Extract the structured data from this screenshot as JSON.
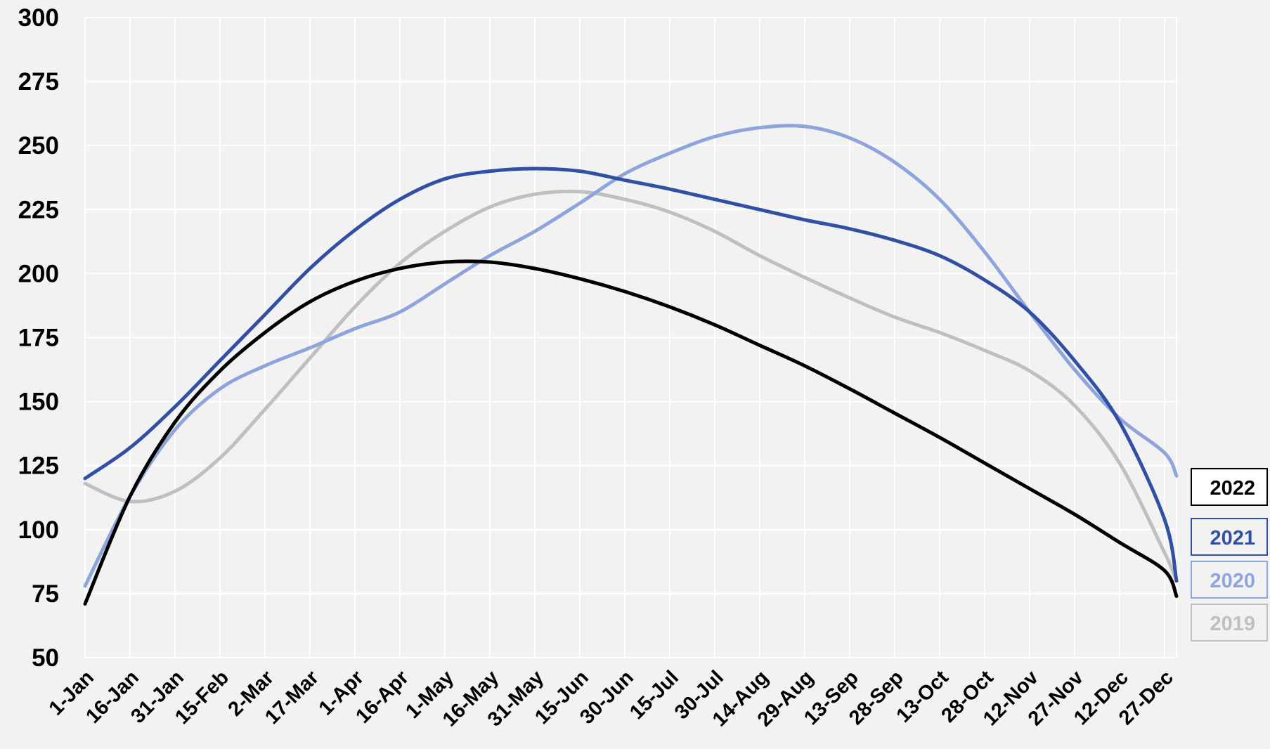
{
  "chart_data": {
    "type": "line",
    "x": [
      0,
      15,
      30,
      45,
      60,
      75,
      90,
      105,
      120,
      135,
      150,
      165,
      180,
      195,
      210,
      225,
      240,
      255,
      270,
      285,
      300,
      315,
      330,
      345,
      360,
      364
    ],
    "xlim": [
      0,
      364
    ],
    "xticks": [
      {
        "value": 0,
        "label": "1-Jan"
      },
      {
        "value": 15,
        "label": "16-Jan"
      },
      {
        "value": 30,
        "label": "31-Jan"
      },
      {
        "value": 45,
        "label": "15-Feb"
      },
      {
        "value": 60,
        "label": "2-Mar"
      },
      {
        "value": 75,
        "label": "17-Mar"
      },
      {
        "value": 90,
        "label": "1-Apr"
      },
      {
        "value": 105,
        "label": "16-Apr"
      },
      {
        "value": 120,
        "label": "1-May"
      },
      {
        "value": 135,
        "label": "16-May"
      },
      {
        "value": 150,
        "label": "31-May"
      },
      {
        "value": 165,
        "label": "15-Jun"
      },
      {
        "value": 180,
        "label": "30-Jun"
      },
      {
        "value": 195,
        "label": "15-Jul"
      },
      {
        "value": 210,
        "label": "30-Jul"
      },
      {
        "value": 225,
        "label": "14-Aug"
      },
      {
        "value": 240,
        "label": "29-Aug"
      },
      {
        "value": 255,
        "label": "13-Sep"
      },
      {
        "value": 270,
        "label": "28-Sep"
      },
      {
        "value": 285,
        "label": "13-Oct"
      },
      {
        "value": 300,
        "label": "28-Oct"
      },
      {
        "value": 315,
        "label": "12-Nov"
      },
      {
        "value": 330,
        "label": "27-Nov"
      },
      {
        "value": 345,
        "label": "12-Dec"
      },
      {
        "value": 360,
        "label": "27-Dec"
      }
    ],
    "ylim": [
      50,
      300
    ],
    "yticks": [
      50,
      75,
      100,
      125,
      150,
      175,
      200,
      225,
      250,
      275,
      300
    ],
    "grid": true,
    "legend": "right",
    "series": [
      {
        "name": "2022",
        "color": "#000000",
        "values": [
          71,
          113,
          142,
          162,
          177,
          189,
          197,
          202,
          204.5,
          204.5,
          202,
          198,
          193,
          187,
          180,
          172,
          164,
          155,
          145.5,
          136,
          126,
          116,
          106,
          95,
          84,
          74
        ]
      },
      {
        "name": "2021",
        "color": "#3150a3",
        "values": [
          120,
          132,
          148,
          166,
          184,
          202,
          217,
          229,
          237,
          240,
          241,
          240,
          236.5,
          233,
          229,
          225,
          221,
          217.5,
          213,
          207,
          197.5,
          185,
          166,
          142,
          104,
          80
        ]
      },
      {
        "name": "2020",
        "color": "#8ea4dc",
        "values": [
          78,
          113,
          139,
          155,
          164,
          171,
          178.5,
          185,
          196,
          207,
          216.5,
          227.5,
          239,
          247,
          253.5,
          257,
          257.5,
          253,
          243.5,
          229,
          208.5,
          185,
          162.5,
          143.5,
          130,
          121
        ]
      },
      {
        "name": "2019",
        "color": "#bfbfbf",
        "values": [
          118,
          111,
          115,
          128,
          147,
          167,
          187,
          204,
          216.5,
          226,
          231,
          232,
          229,
          224,
          216.5,
          207,
          198.5,
          190.5,
          183,
          177,
          170,
          162,
          148.5,
          126,
          91,
          80
        ]
      }
    ]
  }
}
